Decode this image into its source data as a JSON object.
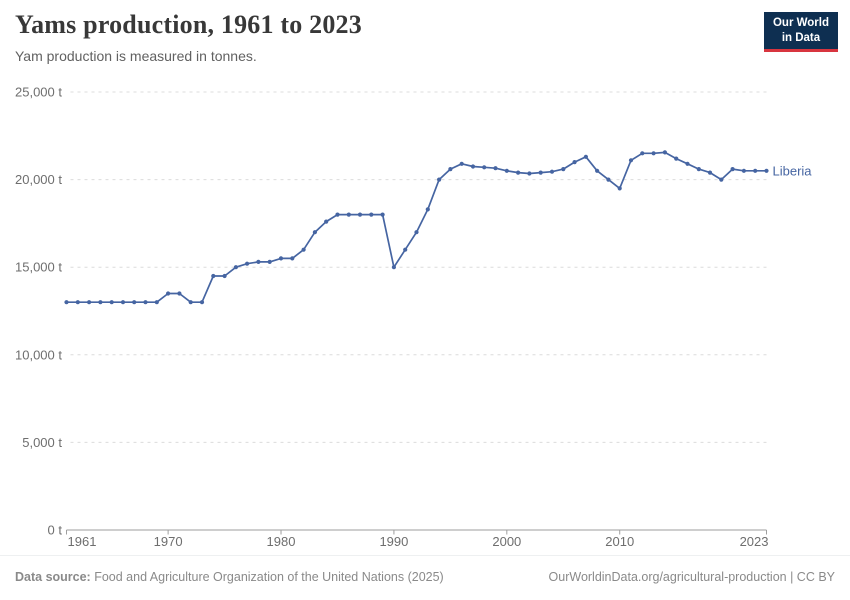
{
  "header": {
    "title": "Yams production, 1961 to 2023",
    "subtitle": "Yam production is measured in tonnes."
  },
  "logo": {
    "line1": "Our World",
    "line2": "in Data"
  },
  "footer": {
    "datasource_label": "Data source:",
    "datasource_text": " Food and Agriculture Organization of the United Nations (2025)",
    "right": "OurWorldinData.org/agricultural-production | CC BY"
  },
  "colors": {
    "line": "#4665a2",
    "series_label": "#4665a2",
    "grid": "#dcdcdc",
    "axis": "#9e9e9e",
    "tick_label": "#6e6e6e",
    "title": "#383838",
    "subtitle": "#616161",
    "footer_text": "#8a8a8a",
    "logo_bg": "#0e2f51",
    "logo_accent": "#d8353f"
  },
  "chart_data": {
    "type": "line",
    "title": "Yams production, 1961 to 2023",
    "subtitle": "Yam production is measured in tonnes.",
    "unit": "t",
    "xlim": [
      1961,
      2023
    ],
    "ylim": [
      0,
      25000
    ],
    "yticks": [
      0,
      5000,
      10000,
      15000,
      20000,
      25000
    ],
    "ytick_labels": [
      "0 t",
      "5,000 t",
      "10,000 t",
      "15,000 t",
      "20,000 t",
      "25,000 t"
    ],
    "xticks": [
      1961,
      1970,
      1980,
      1990,
      2000,
      2010,
      2023
    ],
    "xtick_labels": [
      "1961",
      "1970",
      "1980",
      "1990",
      "2000",
      "2010",
      "2023"
    ],
    "grid": "dashed-horizontal",
    "legend": "inline-end-label",
    "series": [
      {
        "name": "Liberia",
        "x": [
          1961,
          1962,
          1963,
          1964,
          1965,
          1966,
          1967,
          1968,
          1969,
          1970,
          1971,
          1972,
          1973,
          1974,
          1975,
          1976,
          1977,
          1978,
          1979,
          1980,
          1981,
          1982,
          1983,
          1984,
          1985,
          1986,
          1987,
          1988,
          1989,
          1990,
          1991,
          1992,
          1993,
          1994,
          1995,
          1996,
          1997,
          1998,
          1999,
          2000,
          2001,
          2002,
          2003,
          2004,
          2005,
          2006,
          2007,
          2008,
          2009,
          2010,
          2011,
          2012,
          2013,
          2014,
          2015,
          2016,
          2017,
          2018,
          2019,
          2020,
          2021,
          2022,
          2023
        ],
        "values": [
          13000,
          13000,
          13000,
          13000,
          13000,
          13000,
          13000,
          13000,
          13000,
          13500,
          13500,
          13000,
          13000,
          14500,
          14500,
          15000,
          15200,
          15300,
          15300,
          15500,
          15500,
          16000,
          17000,
          17600,
          18000,
          18000,
          18000,
          18000,
          18000,
          15000,
          16000,
          17000,
          18300,
          20000,
          20600,
          20900,
          20750,
          20700,
          20650,
          20500,
          20400,
          20350,
          20400,
          20450,
          20600,
          21000,
          21300,
          20500,
          20000,
          19500,
          21100,
          21500,
          21500,
          21550,
          21200,
          20900,
          20600,
          20400,
          20000,
          20600,
          20500,
          20500,
          20500
        ]
      }
    ]
  }
}
